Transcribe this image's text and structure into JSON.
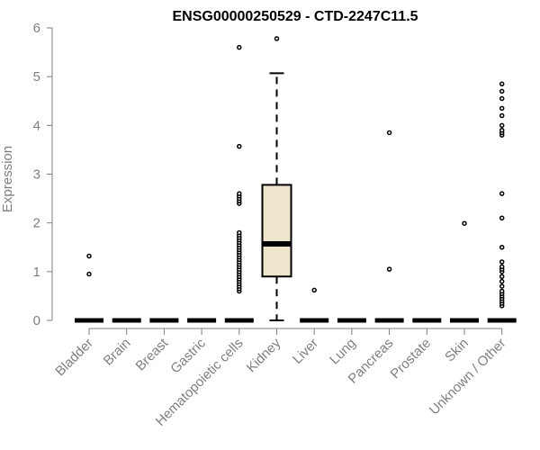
{
  "chart_data": {
    "type": "box",
    "title": "ENSG00000250529 - CTD-2247C11.5",
    "xlabel": "",
    "ylabel": "Expression",
    "ylim": [
      0,
      6
    ],
    "yticks": [
      0,
      1,
      2,
      3,
      4,
      5,
      6
    ],
    "grid": false,
    "colors": {
      "box_fill": "#ede6cc",
      "stroke": "#000000",
      "axis": "#7f7f7f"
    },
    "categories": [
      "Bladder",
      "Brain",
      "Breast",
      "Gastric",
      "Hematopoietic cells",
      "Kidney",
      "Liver",
      "Lung",
      "Pancreas",
      "Prostate",
      "Skin",
      "Unknown / Other"
    ],
    "boxes": [
      {
        "category": "Bladder",
        "min": 0,
        "q1": 0,
        "median": 0,
        "q3": 0,
        "max": 0,
        "outliers": [
          0.95,
          1.32
        ]
      },
      {
        "category": "Brain",
        "min": 0,
        "q1": 0,
        "median": 0,
        "q3": 0,
        "max": 0,
        "outliers": []
      },
      {
        "category": "Breast",
        "min": 0,
        "q1": 0,
        "median": 0,
        "q3": 0,
        "max": 0,
        "outliers": []
      },
      {
        "category": "Gastric",
        "min": 0,
        "q1": 0,
        "median": 0,
        "q3": 0,
        "max": 0,
        "outliers": []
      },
      {
        "category": "Hematopoietic cells",
        "min": 0,
        "q1": 0,
        "median": 0,
        "q3": 0,
        "max": 0,
        "outliers": [
          0.6,
          0.65,
          0.7,
          0.75,
          0.8,
          0.85,
          0.9,
          0.95,
          1.0,
          1.05,
          1.1,
          1.15,
          1.2,
          1.25,
          1.3,
          1.35,
          1.4,
          1.45,
          1.5,
          1.55,
          1.6,
          1.65,
          1.7,
          1.75,
          1.8,
          2.4,
          2.45,
          2.5,
          2.55,
          2.6,
          3.57,
          5.6
        ]
      },
      {
        "category": "Kidney",
        "min": 0,
        "q1": 0.9,
        "median": 1.57,
        "q3": 2.78,
        "max": 5.07,
        "outliers": [
          5.78
        ]
      },
      {
        "category": "Liver",
        "min": 0,
        "q1": 0,
        "median": 0,
        "q3": 0,
        "max": 0,
        "outliers": [
          0.62
        ]
      },
      {
        "category": "Lung",
        "min": 0,
        "q1": 0,
        "median": 0,
        "q3": 0,
        "max": 0,
        "outliers": []
      },
      {
        "category": "Pancreas",
        "min": 0,
        "q1": 0,
        "median": 0,
        "q3": 0,
        "max": 0,
        "outliers": [
          1.05,
          3.85
        ]
      },
      {
        "category": "Prostate",
        "min": 0,
        "q1": 0,
        "median": 0,
        "q3": 0,
        "max": 0,
        "outliers": []
      },
      {
        "category": "Skin",
        "min": 0,
        "q1": 0,
        "median": 0,
        "q3": 0,
        "max": 0,
        "outliers": [
          1.99
        ]
      },
      {
        "category": "Unknown / Other",
        "min": 0,
        "q1": 0,
        "median": 0,
        "q3": 0,
        "max": 0,
        "outliers": [
          0.3,
          0.35,
          0.4,
          0.45,
          0.5,
          0.55,
          0.6,
          0.7,
          0.8,
          0.9,
          1.0,
          1.05,
          1.1,
          1.2,
          1.5,
          2.1,
          2.6,
          3.8,
          3.85,
          3.9,
          4.0,
          4.2,
          4.35,
          4.55,
          4.7,
          4.85
        ]
      }
    ]
  }
}
